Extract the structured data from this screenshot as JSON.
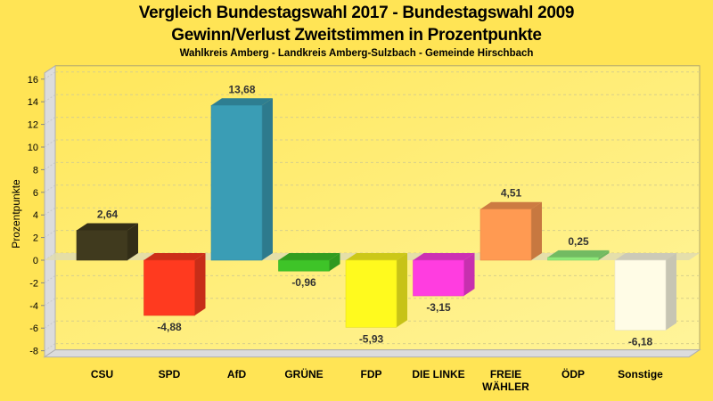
{
  "chart_data": {
    "type": "bar",
    "title": "Vergleich Bundestagswahl 2017 - Bundestagswahl 2009",
    "subtitle": "Gewinn/Verlust Zweitstimmen in Prozentpunkte",
    "subsubtitle": "Wahlkreis Amberg - Landkreis Amberg-Sulzbach - Gemeinde Hirschbach",
    "xlabel": "",
    "ylabel": "Prozentpunkte",
    "ylim": [
      -8,
      16
    ],
    "yticks": [
      16,
      14,
      12,
      10,
      8,
      6,
      4,
      2,
      0,
      -2,
      -4,
      -6,
      -8
    ],
    "grid": true,
    "categories": [
      "CSU",
      "SPD",
      "AfD",
      "GRÜNE",
      "FDP",
      "DIE LINKE",
      "FREIE WÄHLER",
      "ÖDP",
      "Sonstige"
    ],
    "category_lines": [
      [
        "CSU"
      ],
      [
        "SPD"
      ],
      [
        "AfD"
      ],
      [
        "GRÜNE"
      ],
      [
        "FDP"
      ],
      [
        "DIE LINKE"
      ],
      [
        "FREIE",
        "WÄHLER"
      ],
      [
        "ÖDP"
      ],
      [
        "Sonstige"
      ]
    ],
    "values": [
      2.64,
      -4.88,
      13.68,
      -0.96,
      -5.93,
      -3.15,
      4.51,
      0.25,
      -6.18
    ],
    "value_labels": [
      "2,64",
      "-4,88",
      "13,68",
      "-0,96",
      "-5,93",
      "-3,15",
      "4,51",
      "0,25",
      "-6,18"
    ],
    "colors": [
      "#403A1E",
      "#FF3A1F",
      "#3A9DB5",
      "#3EC428",
      "#FFFA1E",
      "#FF3DE0",
      "#FF9A52",
      "#8EEA7A",
      "#FFFCE6"
    ]
  }
}
